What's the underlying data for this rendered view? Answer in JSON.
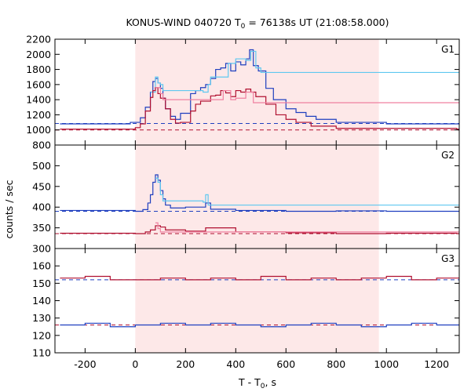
{
  "chart_data": {
    "type": "line",
    "title_main": "KONUS-WIND 040720 T",
    "title_sub": "0",
    "title_rest": " = 76138s UT (21:08:58.000)",
    "xlabel_main": "T - T",
    "xlabel_sub": "0",
    "xlabel_rest": ", s",
    "ylabel": "counts / sec",
    "xlim": [
      -320,
      1290
    ],
    "xticks": [
      -200,
      0,
      200,
      400,
      600,
      800,
      1000,
      1200
    ],
    "shaded_interval": [
      0,
      970
    ],
    "colors": {
      "shade": "#fde8e8",
      "total": "#1f3fbf",
      "total_light": "#5fc8f0",
      "soft": "#b01030",
      "soft_light": "#f080a0",
      "background_fit": "#1f3fbf"
    },
    "panels": [
      {
        "label": "G1",
        "ylim": [
          800,
          2200
        ],
        "yticks": [
          800,
          1000,
          1200,
          1400,
          1600,
          1800,
          2000,
          2200
        ],
        "background_levels": [
          1085,
          1000
        ],
        "series": [
          {
            "color_key": "total",
            "x": [
              -300,
              -100,
              -20,
              20,
              40,
              60,
              70,
              80,
              90,
              100,
              110,
              120,
              140,
              160,
              180,
              220,
              240,
              260,
              280,
              300,
              320,
              340,
              360,
              380,
              400,
              420,
              440,
              455,
              470,
              490,
              520,
              550,
              600,
              640,
              680,
              720,
              800,
              1000,
              1280
            ],
            "y": [
              1080,
              1080,
              1100,
              1160,
              1300,
              1500,
              1640,
              1680,
              1620,
              1550,
              1420,
              1280,
              1180,
              1140,
              1220,
              1480,
              1520,
              1560,
              1600,
              1680,
              1800,
              1820,
              1880,
              1780,
              1900,
              1860,
              1940,
              2060,
              1850,
              1780,
              1550,
              1400,
              1280,
              1230,
              1180,
              1140,
              1100,
              1080,
              1080
            ]
          },
          {
            "color_key": "total_light",
            "x": [
              60,
              80,
              90,
              100,
              110,
              270,
              290,
              300,
              370,
              400,
              440,
              460,
              480,
              500
            ],
            "y": [
              1500,
              1700,
              1620,
              1600,
              1520,
              1500,
              1600,
              1700,
              1880,
              1940,
              1920,
              2040,
              1820,
              1760
            ]
          },
          {
            "color_key": "soft",
            "x": [
              -300,
              -50,
              0,
              20,
              40,
              60,
              70,
              80,
              90,
              100,
              120,
              140,
              160,
              180,
              220,
              240,
              260,
              300,
              320,
              340,
              360,
              380,
              400,
              420,
              440,
              460,
              480,
              520,
              560,
              600,
              640,
              700,
              800,
              1280
            ],
            "y": [
              1010,
              1010,
              1030,
              1080,
              1250,
              1430,
              1520,
              1560,
              1480,
              1420,
              1280,
              1140,
              1090,
              1100,
              1250,
              1340,
              1380,
              1450,
              1460,
              1520,
              1490,
              1440,
              1520,
              1500,
              1540,
              1500,
              1440,
              1340,
              1200,
              1140,
              1100,
              1050,
              1020,
              1010
            ]
          },
          {
            "color_key": "soft_light",
            "x": [
              80,
              100,
              110,
              300,
              350,
              380,
              400,
              440,
              470
            ],
            "y": [
              1560,
              1480,
              1400,
              1400,
              1520,
              1400,
              1420,
              1500,
              1360
            ]
          }
        ]
      },
      {
        "label": "G2",
        "ylim": [
          300,
          550
        ],
        "yticks": [
          300,
          350,
          400,
          450,
          500
        ],
        "background_levels": [
          390,
          336
        ],
        "series": [
          {
            "color_key": "total",
            "x": [
              -300,
              0,
              30,
              50,
              60,
              70,
              80,
              90,
              100,
              110,
              120,
              140,
              200,
              280,
              300,
              400,
              600,
              800,
              1000,
              1280
            ],
            "y": [
              392,
              390,
              394,
              410,
              430,
              460,
              478,
              465,
              440,
              420,
              405,
              398,
              400,
              410,
              395,
              392,
              390,
              391,
              390,
              390
            ]
          },
          {
            "color_key": "total_light",
            "x": [
              80,
              90,
              100,
              110,
              270,
              280,
              290
            ],
            "y": [
              470,
              460,
              430,
              415,
              412,
              430,
              405
            ]
          },
          {
            "color_key": "soft",
            "x": [
              -300,
              0,
              40,
              60,
              80,
              100,
              120,
              200,
              280,
              400,
              600,
              800,
              1000,
              1280
            ],
            "y": [
              337,
              336,
              340,
              345,
              355,
              352,
              345,
              342,
              350,
              340,
              338,
              336,
              337,
              336
            ]
          },
          {
            "color_key": "soft_light",
            "x": [
              80,
              90,
              100
            ],
            "y": [
              362,
              348,
              340
            ]
          }
        ]
      },
      {
        "label": "G3",
        "ylim": [
          110,
          170
        ],
        "yticks": [
          110,
          120,
          130,
          140,
          150,
          160
        ],
        "background_levels": [
          152,
          126
        ],
        "series": [
          {
            "color_key": "soft",
            "x": [
              -300,
              -200,
              -100,
              0,
              100,
              200,
              300,
              400,
              500,
              600,
              700,
              800,
              900,
              1000,
              1100,
              1200,
              1280
            ],
            "y": [
              153,
              154,
              152,
              152,
              153,
              152,
              153,
              152,
              154,
              152,
              153,
              152,
              153,
              154,
              152,
              153,
              153
            ]
          },
          {
            "color_key": "total",
            "x": [
              -300,
              -200,
              -100,
              0,
              100,
              200,
              300,
              400,
              500,
              600,
              700,
              800,
              900,
              1000,
              1100,
              1200,
              1280
            ],
            "y": [
              126,
              127,
              125,
              126,
              127,
              126,
              127,
              126,
              125,
              126,
              127,
              126,
              125,
              126,
              127,
              126,
              126
            ]
          }
        ]
      }
    ]
  }
}
